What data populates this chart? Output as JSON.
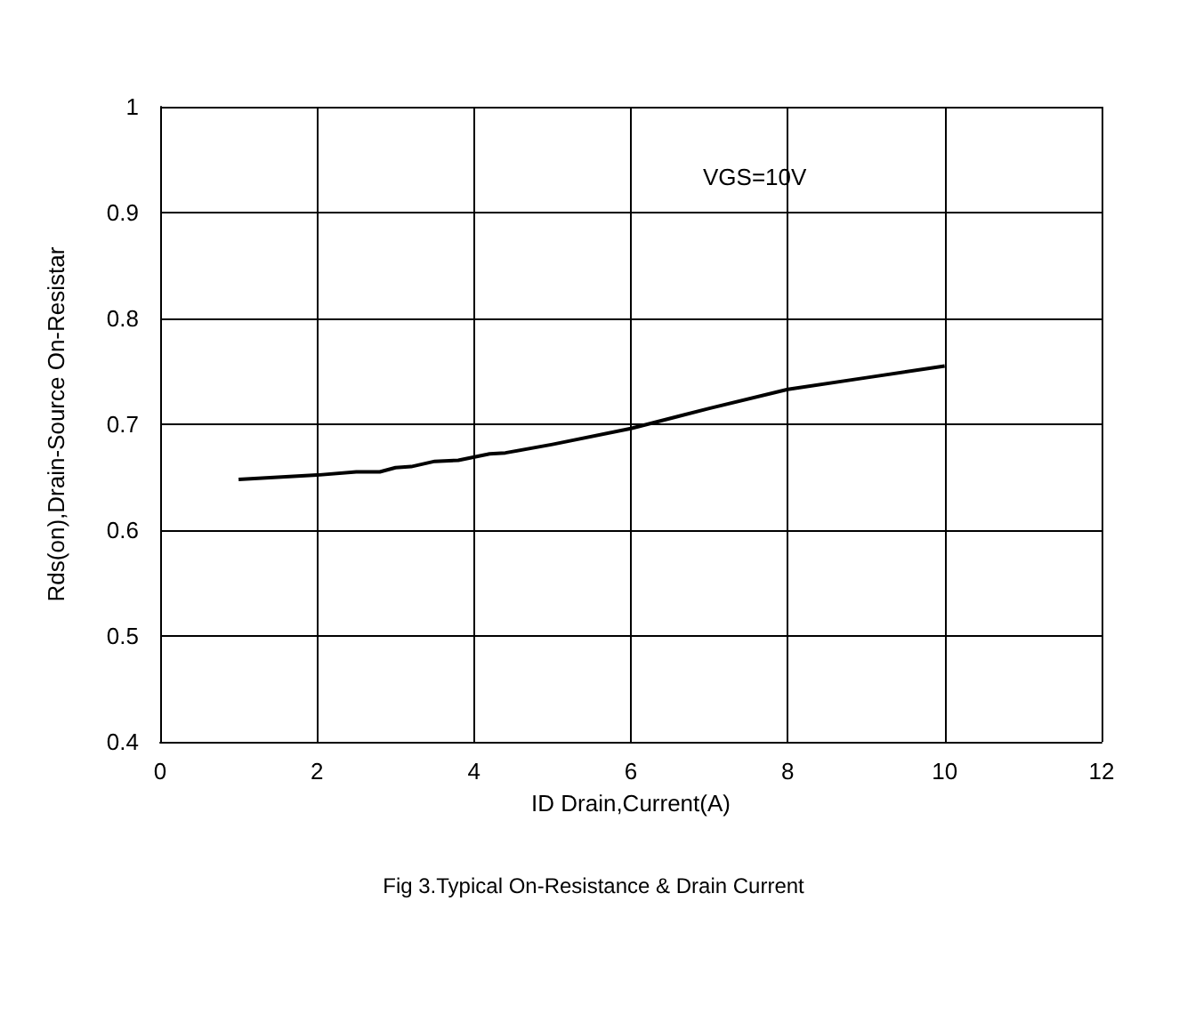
{
  "chart_data": {
    "type": "line",
    "xlabel": "ID Drain,Current(A)",
    "ylabel": "Rds(on),Drain-Source On-Resistar",
    "x": [
      1,
      2,
      2.5,
      2.8,
      3,
      3.2,
      3.5,
      3.8,
      4.2,
      4.4,
      5,
      6,
      7,
      8,
      9,
      10
    ],
    "series": [
      {
        "color": "#000000",
        "values": [
          0.648,
          0.652,
          0.655,
          0.655,
          0.659,
          0.66,
          0.665,
          0.666,
          0.672,
          0.673,
          0.681,
          0.696,
          0.715,
          0.733,
          0.744,
          0.755
        ]
      }
    ],
    "xlim": [
      0,
      12
    ],
    "xticks": [
      0,
      2,
      4,
      6,
      8,
      10,
      12
    ],
    "ylim": [
      0.4,
      1
    ],
    "yticks": [
      0.4,
      0.5,
      0.6,
      0.7,
      0.8,
      0.9,
      1
    ],
    "grid": true,
    "marker": "none",
    "line_style": "solid",
    "annotations": [
      "VGS=10V",
      "Fig 3.Typical On-Resistance & Drain Current"
    ]
  }
}
